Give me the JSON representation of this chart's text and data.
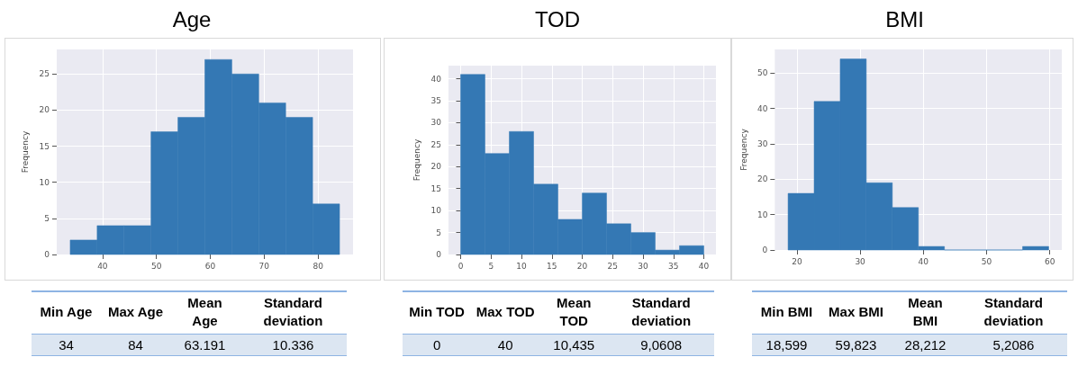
{
  "chart_data": [
    {
      "type": "histogram",
      "title": "Age",
      "ylabel": "Frequency",
      "color": "#3478b4",
      "bins": [
        34,
        39,
        44,
        49,
        54,
        59,
        64,
        69,
        74,
        79,
        84
      ],
      "values": [
        2,
        4,
        4,
        17,
        19,
        27,
        25,
        21,
        19,
        7
      ],
      "xlim": [
        31.5,
        86.5
      ],
      "xticks": [
        40,
        50,
        60,
        70,
        80
      ],
      "ylim": [
        0,
        28.4
      ],
      "yticks": [
        0,
        5,
        10,
        15,
        20,
        25
      ],
      "grid": true,
      "annotations": [
        "Min Age",
        "Max Age",
        "Mean Age",
        "Standard deviation",
        "34",
        "84",
        "63.191",
        "10.336"
      ]
    },
    {
      "type": "histogram",
      "title": "TOD",
      "ylabel": "Frequency",
      "color": "#3478b4",
      "bins": [
        0,
        4,
        8,
        12,
        16,
        20,
        24,
        28,
        32,
        36,
        40
      ],
      "values": [
        41,
        23,
        28,
        16,
        8,
        14,
        7,
        5,
        1,
        2
      ],
      "xlim": [
        -2,
        42
      ],
      "xticks": [
        0,
        5,
        10,
        15,
        20,
        25,
        30,
        35,
        40
      ],
      "ylim": [
        0,
        43
      ],
      "yticks": [
        0,
        5,
        10,
        15,
        20,
        25,
        30,
        35,
        40
      ],
      "grid": true,
      "annotations": [
        "Min TOD",
        "Max TOD",
        "Mean TOD",
        "Standard deviation",
        "0",
        "40",
        "10,435",
        "9,0608"
      ]
    },
    {
      "type": "histogram",
      "title": "BMI",
      "ylabel": "Frequency",
      "color": "#3478b4",
      "bins": [
        18.599,
        22.721,
        26.844,
        30.966,
        35.089,
        39.211,
        43.333,
        47.456,
        51.578,
        55.701,
        59.823
      ],
      "values": [
        16,
        42,
        54,
        19,
        12,
        1,
        0,
        0,
        0,
        1
      ],
      "xlim": [
        16.5,
        61.9
      ],
      "xticks": [
        20,
        30,
        40,
        50,
        60
      ],
      "ylim": [
        0,
        56.7
      ],
      "yticks": [
        0,
        10,
        20,
        30,
        40,
        50
      ],
      "grid": true,
      "annotations": [
        "Min BMI",
        "Max BMI",
        "Mean BMI",
        "Standard deviation",
        "18,599",
        "59,823",
        "28,212",
        "5,2086"
      ]
    }
  ]
}
